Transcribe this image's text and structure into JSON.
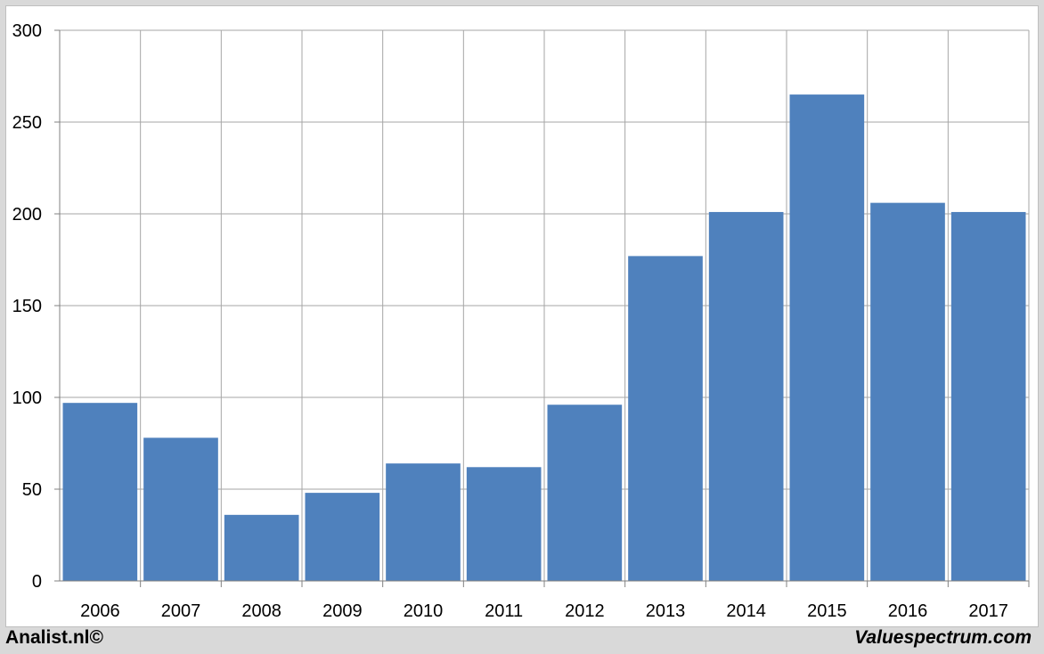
{
  "chart_data": {
    "type": "bar",
    "categories": [
      "2006",
      "2007",
      "2008",
      "2009",
      "2010",
      "2011",
      "2012",
      "2013",
      "2014",
      "2015",
      "2016",
      "2017"
    ],
    "values": [
      97,
      78,
      36,
      48,
      64,
      62,
      96,
      177,
      201,
      265,
      206,
      201
    ],
    "ylim": [
      0,
      300
    ],
    "yticks": [
      0,
      50,
      100,
      150,
      200,
      250,
      300
    ],
    "grid": true,
    "bar_color": "#4f81bd",
    "grid_color": "#a6a6a6"
  },
  "footer": {
    "left": "Analist.nl©",
    "right": "Valuespectrum.com"
  }
}
